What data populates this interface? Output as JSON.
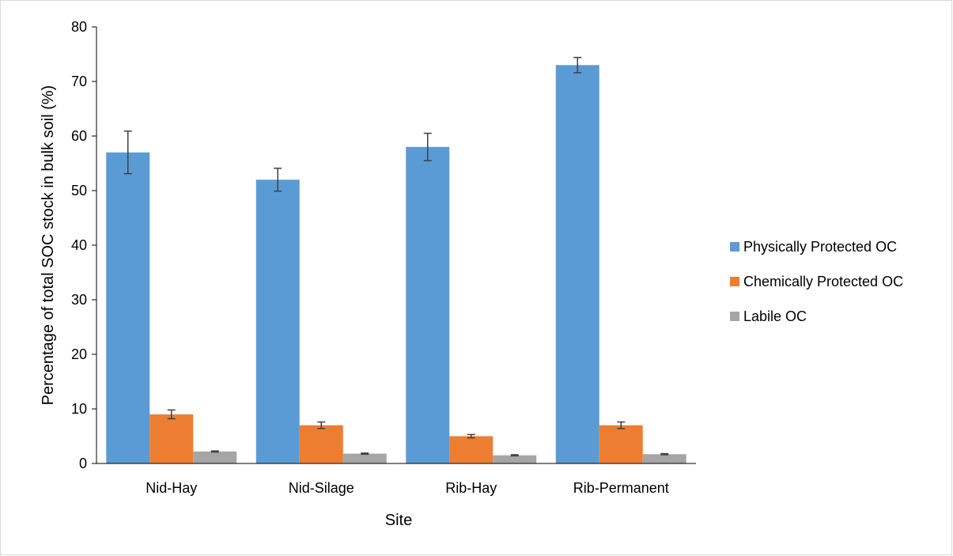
{
  "chart_data": {
    "type": "bar",
    "title": "",
    "xlabel": "Site",
    "ylabel": "Percentage of total SOC stock in bulk soil (%)",
    "ylim": [
      0,
      80
    ],
    "yticks": [
      0,
      10,
      20,
      30,
      40,
      50,
      60,
      70,
      80
    ],
    "grid": false,
    "legend_position": "right",
    "categories": [
      "Nid-Hay",
      "Nid-Silage",
      "Rib-Hay",
      "Rib-Permanent"
    ],
    "series": [
      {
        "name": "Physically Protected OC",
        "color": "#5b9bd5",
        "values": [
          57,
          52,
          58,
          73
        ],
        "errors": [
          3.9,
          2.1,
          2.5,
          1.4
        ]
      },
      {
        "name": "Chemically Protected OC",
        "color": "#ed7d31",
        "values": [
          9,
          7,
          5,
          7
        ],
        "errors": [
          0.8,
          0.6,
          0.3,
          0.6
        ]
      },
      {
        "name": "Labile OC",
        "color": "#a5a5a5",
        "values": [
          2.2,
          1.8,
          1.5,
          1.7
        ],
        "errors": [
          0.1,
          0.1,
          0.1,
          0.1
        ]
      }
    ]
  }
}
